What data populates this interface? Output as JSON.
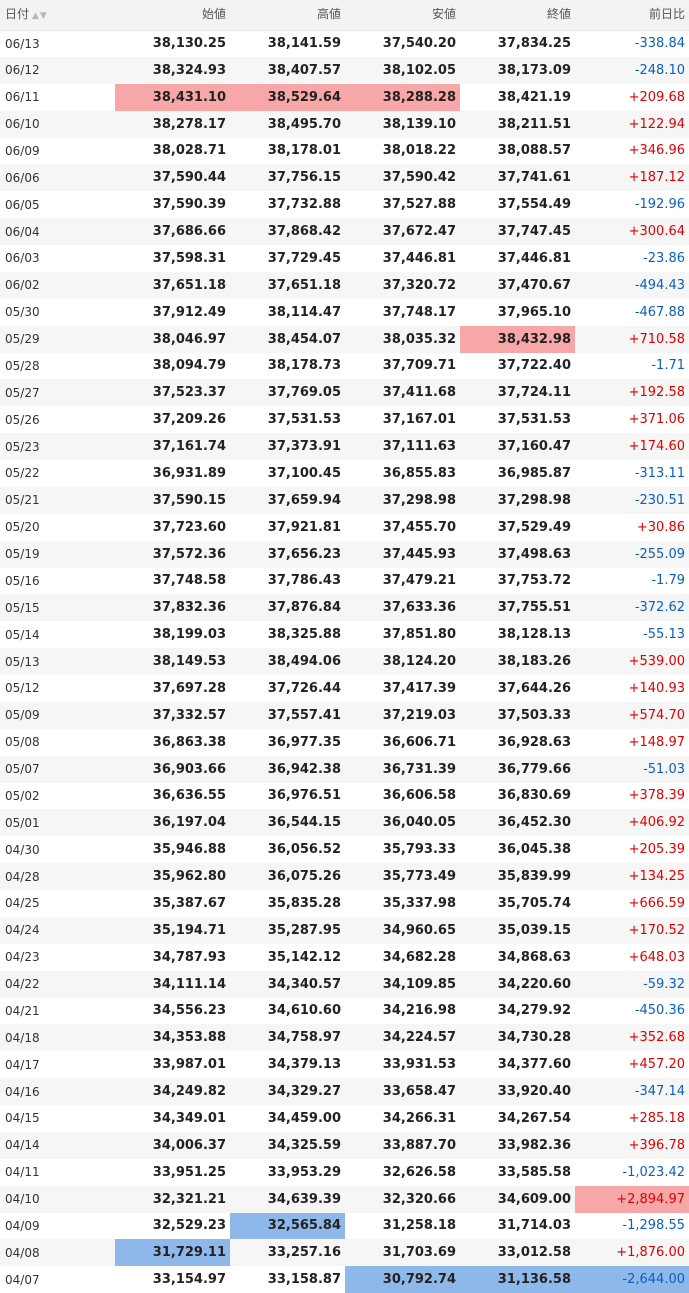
{
  "headers": {
    "date": "日付",
    "open": "始値",
    "high": "高値",
    "low": "安値",
    "close": "終値",
    "change": "前日比"
  },
  "rows": [
    {
      "date": "06/13",
      "open": "38,130.25",
      "high": "38,141.59",
      "low": "37,540.20",
      "close": "37,834.25",
      "change": "-338.84",
      "dir": "neg",
      "hl": []
    },
    {
      "date": "06/12",
      "open": "38,324.93",
      "high": "38,407.57",
      "low": "38,102.05",
      "close": "38,173.09",
      "change": "-248.10",
      "dir": "neg",
      "hl": []
    },
    {
      "date": "06/11",
      "open": "38,431.10",
      "high": "38,529.64",
      "low": "38,288.28",
      "close": "38,421.19",
      "change": "+209.68",
      "dir": "pos",
      "hl": [
        "open-red",
        "high-red",
        "low-red"
      ]
    },
    {
      "date": "06/10",
      "open": "38,278.17",
      "high": "38,495.70",
      "low": "38,139.10",
      "close": "38,211.51",
      "change": "+122.94",
      "dir": "pos",
      "hl": []
    },
    {
      "date": "06/09",
      "open": "38,028.71",
      "high": "38,178.01",
      "low": "38,018.22",
      "close": "38,088.57",
      "change": "+346.96",
      "dir": "pos",
      "hl": []
    },
    {
      "date": "06/06",
      "open": "37,590.44",
      "high": "37,756.15",
      "low": "37,590.42",
      "close": "37,741.61",
      "change": "+187.12",
      "dir": "pos",
      "hl": []
    },
    {
      "date": "06/05",
      "open": "37,590.39",
      "high": "37,732.88",
      "low": "37,527.88",
      "close": "37,554.49",
      "change": "-192.96",
      "dir": "neg",
      "hl": []
    },
    {
      "date": "06/04",
      "open": "37,686.66",
      "high": "37,868.42",
      "low": "37,672.47",
      "close": "37,747.45",
      "change": "+300.64",
      "dir": "pos",
      "hl": []
    },
    {
      "date": "06/03",
      "open": "37,598.31",
      "high": "37,729.45",
      "low": "37,446.81",
      "close": "37,446.81",
      "change": "-23.86",
      "dir": "neg",
      "hl": []
    },
    {
      "date": "06/02",
      "open": "37,651.18",
      "high": "37,651.18",
      "low": "37,320.72",
      "close": "37,470.67",
      "change": "-494.43",
      "dir": "neg",
      "hl": []
    },
    {
      "date": "05/30",
      "open": "37,912.49",
      "high": "38,114.47",
      "low": "37,748.17",
      "close": "37,965.10",
      "change": "-467.88",
      "dir": "neg",
      "hl": []
    },
    {
      "date": "05/29",
      "open": "38,046.97",
      "high": "38,454.07",
      "low": "38,035.32",
      "close": "38,432.98",
      "change": "+710.58",
      "dir": "pos",
      "hl": [
        "close-red"
      ]
    },
    {
      "date": "05/28",
      "open": "38,094.79",
      "high": "38,178.73",
      "low": "37,709.71",
      "close": "37,722.40",
      "change": "-1.71",
      "dir": "neg",
      "hl": []
    },
    {
      "date": "05/27",
      "open": "37,523.37",
      "high": "37,769.05",
      "low": "37,411.68",
      "close": "37,724.11",
      "change": "+192.58",
      "dir": "pos",
      "hl": []
    },
    {
      "date": "05/26",
      "open": "37,209.26",
      "high": "37,531.53",
      "low": "37,167.01",
      "close": "37,531.53",
      "change": "+371.06",
      "dir": "pos",
      "hl": []
    },
    {
      "date": "05/23",
      "open": "37,161.74",
      "high": "37,373.91",
      "low": "37,111.63",
      "close": "37,160.47",
      "change": "+174.60",
      "dir": "pos",
      "hl": []
    },
    {
      "date": "05/22",
      "open": "36,931.89",
      "high": "37,100.45",
      "low": "36,855.83",
      "close": "36,985.87",
      "change": "-313.11",
      "dir": "neg",
      "hl": []
    },
    {
      "date": "05/21",
      "open": "37,590.15",
      "high": "37,659.94",
      "low": "37,298.98",
      "close": "37,298.98",
      "change": "-230.51",
      "dir": "neg",
      "hl": []
    },
    {
      "date": "05/20",
      "open": "37,723.60",
      "high": "37,921.81",
      "low": "37,455.70",
      "close": "37,529.49",
      "change": "+30.86",
      "dir": "pos",
      "hl": []
    },
    {
      "date": "05/19",
      "open": "37,572.36",
      "high": "37,656.23",
      "low": "37,445.93",
      "close": "37,498.63",
      "change": "-255.09",
      "dir": "neg",
      "hl": []
    },
    {
      "date": "05/16",
      "open": "37,748.58",
      "high": "37,786.43",
      "low": "37,479.21",
      "close": "37,753.72",
      "change": "-1.79",
      "dir": "neg",
      "hl": []
    },
    {
      "date": "05/15",
      "open": "37,832.36",
      "high": "37,876.84",
      "low": "37,633.36",
      "close": "37,755.51",
      "change": "-372.62",
      "dir": "neg",
      "hl": []
    },
    {
      "date": "05/14",
      "open": "38,199.03",
      "high": "38,325.88",
      "low": "37,851.80",
      "close": "38,128.13",
      "change": "-55.13",
      "dir": "neg",
      "hl": []
    },
    {
      "date": "05/13",
      "open": "38,149.53",
      "high": "38,494.06",
      "low": "38,124.20",
      "close": "38,183.26",
      "change": "+539.00",
      "dir": "pos",
      "hl": []
    },
    {
      "date": "05/12",
      "open": "37,697.28",
      "high": "37,726.44",
      "low": "37,417.39",
      "close": "37,644.26",
      "change": "+140.93",
      "dir": "pos",
      "hl": []
    },
    {
      "date": "05/09",
      "open": "37,332.57",
      "high": "37,557.41",
      "low": "37,219.03",
      "close": "37,503.33",
      "change": "+574.70",
      "dir": "pos",
      "hl": []
    },
    {
      "date": "05/08",
      "open": "36,863.38",
      "high": "36,977.35",
      "low": "36,606.71",
      "close": "36,928.63",
      "change": "+148.97",
      "dir": "pos",
      "hl": []
    },
    {
      "date": "05/07",
      "open": "36,903.66",
      "high": "36,942.38",
      "low": "36,731.39",
      "close": "36,779.66",
      "change": "-51.03",
      "dir": "neg",
      "hl": []
    },
    {
      "date": "05/02",
      "open": "36,636.55",
      "high": "36,976.51",
      "low": "36,606.58",
      "close": "36,830.69",
      "change": "+378.39",
      "dir": "pos",
      "hl": []
    },
    {
      "date": "05/01",
      "open": "36,197.04",
      "high": "36,544.15",
      "low": "36,040.05",
      "close": "36,452.30",
      "change": "+406.92",
      "dir": "pos",
      "hl": []
    },
    {
      "date": "04/30",
      "open": "35,946.88",
      "high": "36,056.52",
      "low": "35,793.33",
      "close": "36,045.38",
      "change": "+205.39",
      "dir": "pos",
      "hl": []
    },
    {
      "date": "04/28",
      "open": "35,962.80",
      "high": "36,075.26",
      "low": "35,773.49",
      "close": "35,839.99",
      "change": "+134.25",
      "dir": "pos",
      "hl": []
    },
    {
      "date": "04/25",
      "open": "35,387.67",
      "high": "35,835.28",
      "low": "35,337.98",
      "close": "35,705.74",
      "change": "+666.59",
      "dir": "pos",
      "hl": []
    },
    {
      "date": "04/24",
      "open": "35,194.71",
      "high": "35,287.95",
      "low": "34,960.65",
      "close": "35,039.15",
      "change": "+170.52",
      "dir": "pos",
      "hl": []
    },
    {
      "date": "04/23",
      "open": "34,787.93",
      "high": "35,142.12",
      "low": "34,682.28",
      "close": "34,868.63",
      "change": "+648.03",
      "dir": "pos",
      "hl": []
    },
    {
      "date": "04/22",
      "open": "34,111.14",
      "high": "34,340.57",
      "low": "34,109.85",
      "close": "34,220.60",
      "change": "-59.32",
      "dir": "neg",
      "hl": []
    },
    {
      "date": "04/21",
      "open": "34,556.23",
      "high": "34,610.60",
      "low": "34,216.98",
      "close": "34,279.92",
      "change": "-450.36",
      "dir": "neg",
      "hl": []
    },
    {
      "date": "04/18",
      "open": "34,353.88",
      "high": "34,758.97",
      "low": "34,224.57",
      "close": "34,730.28",
      "change": "+352.68",
      "dir": "pos",
      "hl": []
    },
    {
      "date": "04/17",
      "open": "33,987.01",
      "high": "34,379.13",
      "low": "33,931.53",
      "close": "34,377.60",
      "change": "+457.20",
      "dir": "pos",
      "hl": []
    },
    {
      "date": "04/16",
      "open": "34,249.82",
      "high": "34,329.27",
      "low": "33,658.47",
      "close": "33,920.40",
      "change": "-347.14",
      "dir": "neg",
      "hl": []
    },
    {
      "date": "04/15",
      "open": "34,349.01",
      "high": "34,459.00",
      "low": "34,266.31",
      "close": "34,267.54",
      "change": "+285.18",
      "dir": "pos",
      "hl": []
    },
    {
      "date": "04/14",
      "open": "34,006.37",
      "high": "34,325.59",
      "low": "33,887.70",
      "close": "33,982.36",
      "change": "+396.78",
      "dir": "pos",
      "hl": []
    },
    {
      "date": "04/11",
      "open": "33,951.25",
      "high": "33,953.29",
      "low": "32,626.58",
      "close": "33,585.58",
      "change": "-1,023.42",
      "dir": "neg",
      "hl": []
    },
    {
      "date": "04/10",
      "open": "32,321.21",
      "high": "34,639.39",
      "low": "32,320.66",
      "close": "34,609.00",
      "change": "+2,894.97",
      "dir": "pos",
      "hl": [
        "change-red"
      ]
    },
    {
      "date": "04/09",
      "open": "32,529.23",
      "high": "32,565.84",
      "low": "31,258.18",
      "close": "31,714.03",
      "change": "-1,298.55",
      "dir": "neg",
      "hl": [
        "high-blue"
      ]
    },
    {
      "date": "04/08",
      "open": "31,729.11",
      "high": "33,257.16",
      "low": "31,703.69",
      "close": "33,012.58",
      "change": "+1,876.00",
      "dir": "pos",
      "hl": [
        "open-blue"
      ]
    },
    {
      "date": "04/07",
      "open": "33,154.97",
      "high": "33,158.87",
      "low": "30,792.74",
      "close": "31,136.58",
      "change": "-2,644.00",
      "dir": "neg",
      "hl": [
        "low-blue",
        "close-blue",
        "change-blue"
      ]
    }
  ]
}
